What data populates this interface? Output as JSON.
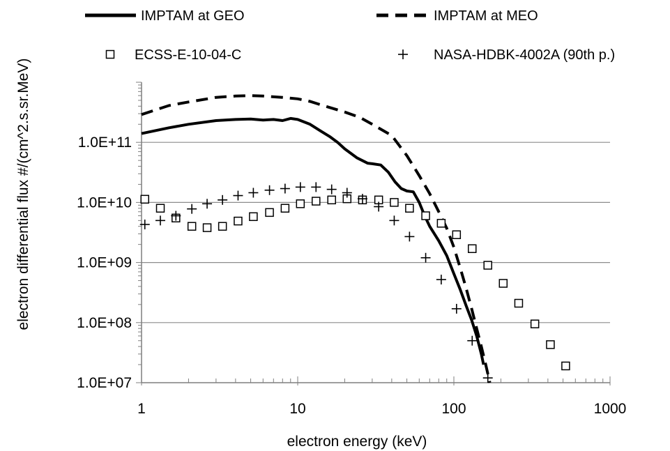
{
  "chart_data": {
    "type": "line",
    "xlabel": "electron energy (keV)",
    "ylabel": "electron differential flux #/(cm^2.s.sr.MeV)",
    "xscale": "log",
    "yscale": "log",
    "xlim": [
      1,
      1000
    ],
    "ylim": [
      10000000,
      1000000000000
    ],
    "x_tick_labels": [
      "1",
      "10",
      "100",
      "1000"
    ],
    "y_tick_labels": [
      "1.0E+07",
      "1.0E+08",
      "1.0E+09",
      "1.0E+10",
      "1.0E+11"
    ],
    "grid": "horizontal",
    "legend_position": "top",
    "series": [
      {
        "name": "IMPTAM at GEO",
        "style": "solid-line",
        "x": [
          1,
          1.5,
          2,
          3,
          4,
          5,
          6,
          7,
          8,
          9,
          10,
          12,
          14,
          16,
          18,
          20,
          24,
          28,
          30,
          34,
          38,
          42,
          46,
          50,
          55,
          60,
          65,
          70,
          80,
          90,
          100,
          110,
          120,
          130,
          140,
          150,
          155
        ],
        "y": [
          140000000000,
          175000000000,
          200000000000,
          230000000000,
          240000000000,
          245000000000,
          235000000000,
          240000000000,
          230000000000,
          250000000000,
          240000000000,
          200000000000,
          155000000000,
          125000000000,
          100000000000,
          78000000000,
          55000000000,
          45000000000,
          44000000000,
          42000000000,
          32000000000,
          22000000000,
          17000000000,
          15500000000,
          15000000000,
          10000000000,
          6000000000,
          4000000000,
          2300000000,
          1300000000,
          650000000,
          350000000,
          190000000,
          110000000,
          60000000,
          30000000,
          20000000
        ]
      },
      {
        "name": "IMPTAM at MEO",
        "style": "dashed-line",
        "x": [
          1,
          1.5,
          2,
          3,
          4,
          5,
          6,
          8,
          10,
          12,
          15,
          20,
          25,
          30,
          40,
          50,
          60,
          70,
          80,
          90,
          100,
          110,
          120,
          130,
          140,
          150,
          160,
          170
        ],
        "y": [
          290000000000,
          410000000000,
          470000000000,
          560000000000,
          590000000000,
          600000000000,
          590000000000,
          560000000000,
          530000000000,
          480000000000,
          400000000000,
          320000000000,
          260000000000,
          200000000000,
          130000000000,
          60000000000,
          28000000000,
          14000000000,
          7000000000,
          3700000000,
          1800000000,
          800000000,
          370000000,
          170000000,
          80000000,
          40000000,
          20000000,
          10000000
        ]
      },
      {
        "name": "ECSS-E-10-04-C",
        "style": "open-square",
        "x": [
          1.05,
          1.32,
          1.66,
          2.1,
          2.63,
          3.3,
          4.15,
          5.2,
          6.6,
          8.3,
          10.4,
          13.1,
          16.5,
          20.7,
          26,
          33,
          41.5,
          52,
          66,
          83,
          104,
          131,
          165,
          207,
          260,
          330,
          415,
          520
        ],
        "y": [
          11300000000,
          8000000000,
          5500000000,
          4000000000,
          3800000000,
          4000000000,
          4900000000,
          5800000000,
          6800000000,
          8000000000,
          9500000000,
          10500000000,
          11000000000,
          11500000000,
          11000000000,
          11000000000,
          10000000000,
          8000000000,
          6000000000,
          4500000000,
          2900000000,
          1700000000,
          900000000,
          450000000,
          210000000,
          95000000,
          43000000,
          19000000
        ]
      },
      {
        "name": "NASA-HDBK-4002A (90th p.)",
        "style": "plus",
        "x": [
          1.05,
          1.32,
          1.66,
          2.1,
          2.63,
          3.3,
          4.15,
          5.2,
          6.6,
          8.3,
          10.4,
          13.1,
          16.5,
          20.7,
          26,
          33,
          41.5,
          52,
          66,
          83,
          104,
          131,
          165
        ],
        "y": [
          4300000000,
          5000000000,
          6000000000,
          7800000000,
          9500000000,
          11000000000,
          13000000000,
          14500000000,
          16000000000,
          17000000000,
          18000000000,
          18000000000,
          16500000000,
          14500000000,
          11500000000,
          8500000000,
          5000000000,
          2700000000,
          1200000000,
          520000000,
          170000000,
          50000000,
          12000000
        ]
      }
    ]
  }
}
